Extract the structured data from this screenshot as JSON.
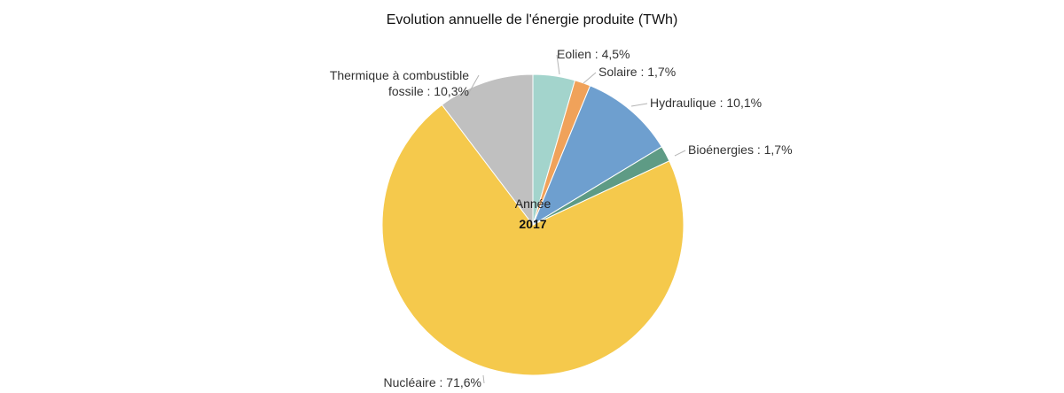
{
  "chart_data": {
    "type": "pie",
    "title": "Evolution annuelle de l'énergie produite (TWh)",
    "center_label": "Année",
    "center_value": "2017",
    "slices": [
      {
        "name": "Eolien",
        "label": "Eolien : 4,5%",
        "value": 4.5,
        "color": "#a3d4cc"
      },
      {
        "name": "Solaire",
        "label": "Solaire : 1,7%",
        "value": 1.7,
        "color": "#f0a25a"
      },
      {
        "name": "Hydraulique",
        "label": "Hydraulique : 10,1%",
        "value": 10.1,
        "color": "#6e9fcf"
      },
      {
        "name": "Bioénergies",
        "label": "Bioénergies : 1,7%",
        "value": 1.7,
        "color": "#5e9b85"
      },
      {
        "name": "Nucléaire",
        "label": "Nucléaire : 71,6%",
        "value": 71.6,
        "color": "#f5c94c"
      },
      {
        "name": "Thermique à combustible fossile",
        "label_lines": [
          "Thermique à combustible",
          "fossile : 10,3%"
        ],
        "value": 10.3,
        "color": "#c0c0c0"
      }
    ]
  }
}
